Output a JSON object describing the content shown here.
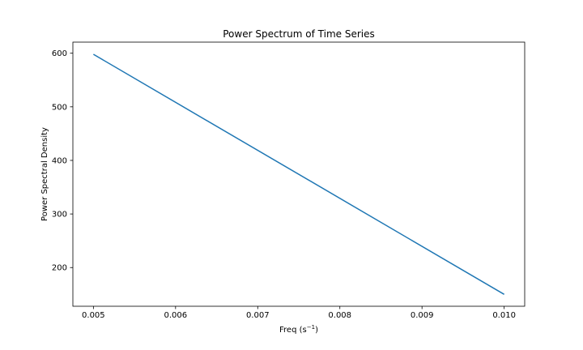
{
  "chart_data": {
    "type": "line",
    "title": "Power Spectrum of Time Series",
    "xlabel": "Freq (s",
    "xlabel_superscript": "−1",
    "xlabel_suffix": ")",
    "ylabel": "Power Spectral Density",
    "xlim": [
      0.00475,
      0.01025
    ],
    "ylim": [
      127.8,
      620.7
    ],
    "x_ticks": [
      0.005,
      0.006,
      0.007,
      0.008,
      0.009,
      0.01
    ],
    "x_tick_labels": [
      "0.005",
      "0.006",
      "0.007",
      "0.008",
      "0.009",
      "0.010"
    ],
    "y_ticks": [
      200,
      300,
      400,
      500,
      600
    ],
    "y_tick_labels": [
      "200",
      "300",
      "400",
      "500",
      "600"
    ],
    "grid": false,
    "series": [
      {
        "color": "#1f77b4",
        "x": [
          0.005,
          0.01
        ],
        "y": [
          598,
          150
        ]
      }
    ]
  }
}
